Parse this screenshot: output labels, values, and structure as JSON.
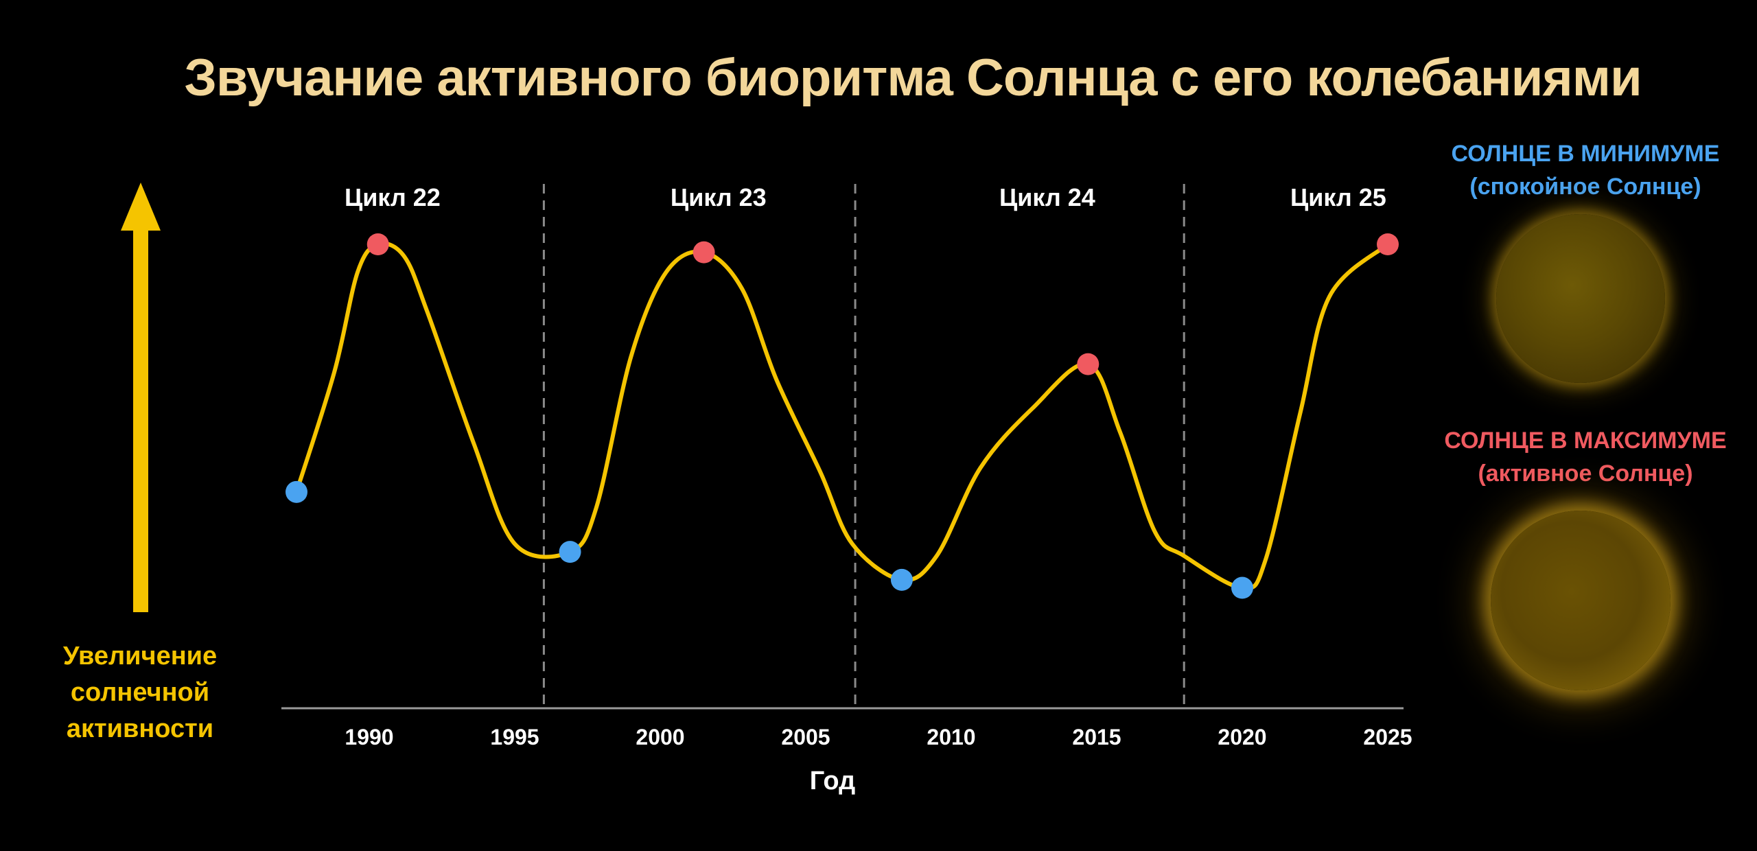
{
  "title": "Звучание активного биоритма Солнца с его колебаниями",
  "activity_label": [
    "Увеличение",
    "солнечной",
    "активности"
  ],
  "legend": {
    "min_title": "СОЛНЦЕ В МИНИМУМЕ",
    "min_subtitle": "(спокойное Солнце)",
    "max_title": "СОЛНЦЕ В МАКСИМУМЕ",
    "max_subtitle": "(активное Солнце)",
    "min_image": "quiet-sun-image",
    "max_image": "active-sun-image"
  },
  "colors": {
    "background": "#000000",
    "title": "#f3d79a",
    "curve": "#f5c400",
    "minimum": "#4aa3f0",
    "maximum": "#f05a60",
    "axis": "#9a9a9a",
    "divider": "#8a8a8a",
    "arrow": "#f5c400"
  },
  "chart_data": {
    "type": "line",
    "title": "Звучание активного биоритма Солнца с его колебаниями",
    "xlabel": "Год",
    "ylabel": "Увеличение солнечной активности",
    "xlim": [
      1987,
      2025.5
    ],
    "ylim": [
      0,
      100
    ],
    "x_ticks": [
      1990,
      1995,
      2000,
      2005,
      2010,
      2015,
      2020,
      2025
    ],
    "grid": false,
    "cycles": [
      {
        "label": "Цикл 22",
        "center": 1990.8
      },
      {
        "label": "Цикл 23",
        "center": 2002.0
      },
      {
        "label": "Цикл 24",
        "center": 2013.3
      },
      {
        "label": "Цикл 25",
        "center": 2023.3
      }
    ],
    "cycle_boundaries": [
      1996.0,
      2006.7,
      2018.0
    ],
    "series": [
      {
        "x": [
          1987.5,
          1988.8,
          1989.6,
          1990.3,
          1991.2,
          1992.0,
          1993.6,
          1995.0,
          1996.9,
          1997.8,
          1999.0,
          2000.2,
          2001.5,
          2002.8,
          2004.0,
          2005.5,
          2006.6,
          2008.3,
          2009.5,
          2011.0,
          2012.8,
          2014.7,
          2015.8,
          2017.0,
          2018.0,
          2020.0,
          2020.8,
          2022.0,
          2023.0,
          2025.0
        ],
        "y": [
          38,
          68,
          93,
          100,
          97,
          83,
          50,
          25,
          23,
          34,
          72,
          93,
          98,
          89,
          66,
          43,
          25,
          16,
          22,
          44,
          59,
          70,
          53,
          28,
          22,
          14,
          21,
          58,
          87,
          100
        ]
      }
    ],
    "minima": [
      {
        "x": 1987.5,
        "y": 38
      },
      {
        "x": 1996.9,
        "y": 23
      },
      {
        "x": 2008.3,
        "y": 16
      },
      {
        "x": 2020.0,
        "y": 14
      }
    ],
    "maxima": [
      {
        "x": 1990.3,
        "y": 100
      },
      {
        "x": 2001.5,
        "y": 98
      },
      {
        "x": 2014.7,
        "y": 70
      },
      {
        "x": 2025.0,
        "y": 100
      }
    ]
  }
}
